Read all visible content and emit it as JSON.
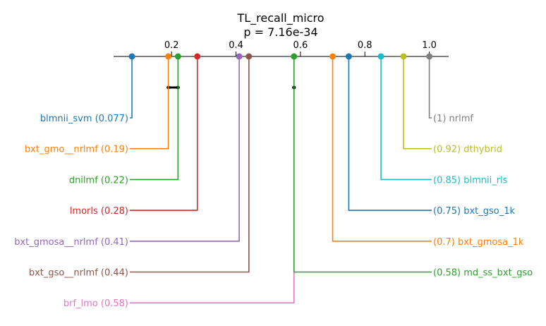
{
  "chart_data": {
    "type": "critical-difference",
    "title": "TL_recall_micro",
    "subtitle": "p = 7.16e-34",
    "axis": {
      "range": [
        0.02,
        1.06
      ],
      "ticks": [
        0.2,
        0.4,
        0.6,
        0.8,
        1.0
      ],
      "tick_labels": [
        "0.2",
        "0.4",
        "0.6",
        "0.8",
        "1.0"
      ]
    },
    "left_methods": [
      {
        "name": "blmnii_svm",
        "value": 0.077,
        "label": "blmnii_svm (0.077)",
        "color": "#1f77b4"
      },
      {
        "name": "bxt_gmo__nrlmf",
        "value": 0.19,
        "label": "bxt_gmo__nrlmf (0.19)",
        "color": "#ff7f0e"
      },
      {
        "name": "dnilmf",
        "value": 0.22,
        "label": "dnilmf (0.22)",
        "color": "#2ca02c"
      },
      {
        "name": "lmorls",
        "value": 0.28,
        "label": "lmorls (0.28)",
        "color": "#d62728"
      },
      {
        "name": "bxt_gmosa__nrlmf",
        "value": 0.41,
        "label": "bxt_gmosa__nrlmf (0.41)",
        "color": "#9467bd"
      },
      {
        "name": "bxt_gso__nrlmf",
        "value": 0.44,
        "label": "bxt_gso__nrlmf (0.44)",
        "color": "#8c564b"
      },
      {
        "name": "brf_lmo",
        "value": 0.58,
        "label": "brf_lmo (0.58)",
        "color": "#e377c2"
      }
    ],
    "right_methods": [
      {
        "name": "nrlmf",
        "value": 1.0,
        "label": "(1) nrlmf",
        "color": "#7f7f7f"
      },
      {
        "name": "dthybrid",
        "value": 0.92,
        "label": "(0.92) dthybrid",
        "color": "#bcbd22"
      },
      {
        "name": "blmnii_rls",
        "value": 0.85,
        "label": "(0.85) blmnii_rls",
        "color": "#17becf"
      },
      {
        "name": "bxt_gso_1k",
        "value": 0.75,
        "label": "(0.75) bxt_gso_1k",
        "color": "#1f77b4"
      },
      {
        "name": "bxt_gmosa_1k",
        "value": 0.7,
        "label": "(0.7) bxt_gmosa_1k",
        "color": "#ff7f0e"
      },
      {
        "name": "md_ss_bxt_gso",
        "value": 0.58,
        "label": "(0.58) md_ss_bxt_gso",
        "color": "#2ca02c"
      }
    ],
    "cliques": [
      {
        "from": 0.19,
        "to": 0.22
      },
      {
        "from": 0.58,
        "to": 0.58
      }
    ],
    "grid": false,
    "legend": "none"
  }
}
